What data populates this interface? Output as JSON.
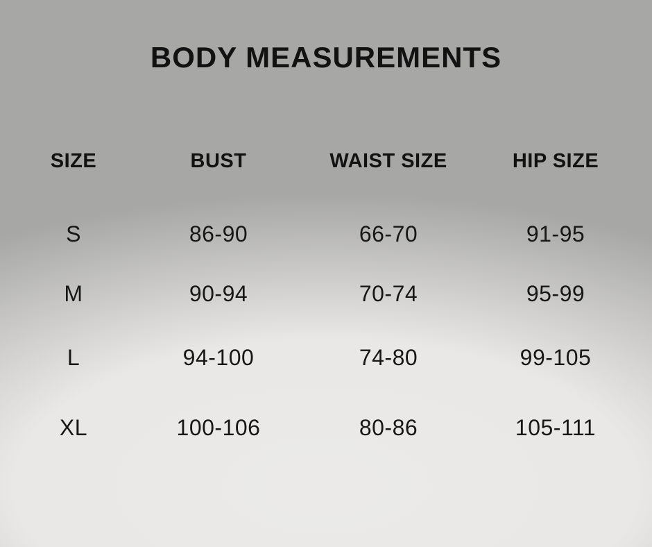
{
  "title": "BODY MEASUREMENTS",
  "table": {
    "headers": [
      "SIZE",
      "BUST",
      "WAIST SIZE",
      "HIP SIZE"
    ],
    "rows": [
      {
        "size": "S",
        "bust": "86-90",
        "waist": "66-70",
        "hip": "91-95"
      },
      {
        "size": "M",
        "bust": "90-94",
        "waist": "70-74",
        "hip": "95-99"
      },
      {
        "size": "L",
        "bust": "94-100",
        "waist": "74-80",
        "hip": "99-105"
      },
      {
        "size": "XL",
        "bust": "100-106",
        "waist": "80-86",
        "hip": "105-111"
      }
    ]
  },
  "chart_data": {
    "type": "table",
    "title": "BODY MEASUREMENTS",
    "columns": [
      "SIZE",
      "BUST",
      "WAIST SIZE",
      "HIP SIZE"
    ],
    "rows": [
      [
        "S",
        "86-90",
        "66-70",
        "91-95"
      ],
      [
        "M",
        "90-94",
        "70-74",
        "95-99"
      ],
      [
        "L",
        "94-100",
        "74-80",
        "99-105"
      ],
      [
        "XL",
        "100-106",
        "80-86",
        "105-111"
      ]
    ],
    "legend_position": "none",
    "grid": false
  },
  "colors": {
    "background_gray": "#a7a7a6",
    "glow_center": "#ebeae8",
    "text": "#121212"
  }
}
